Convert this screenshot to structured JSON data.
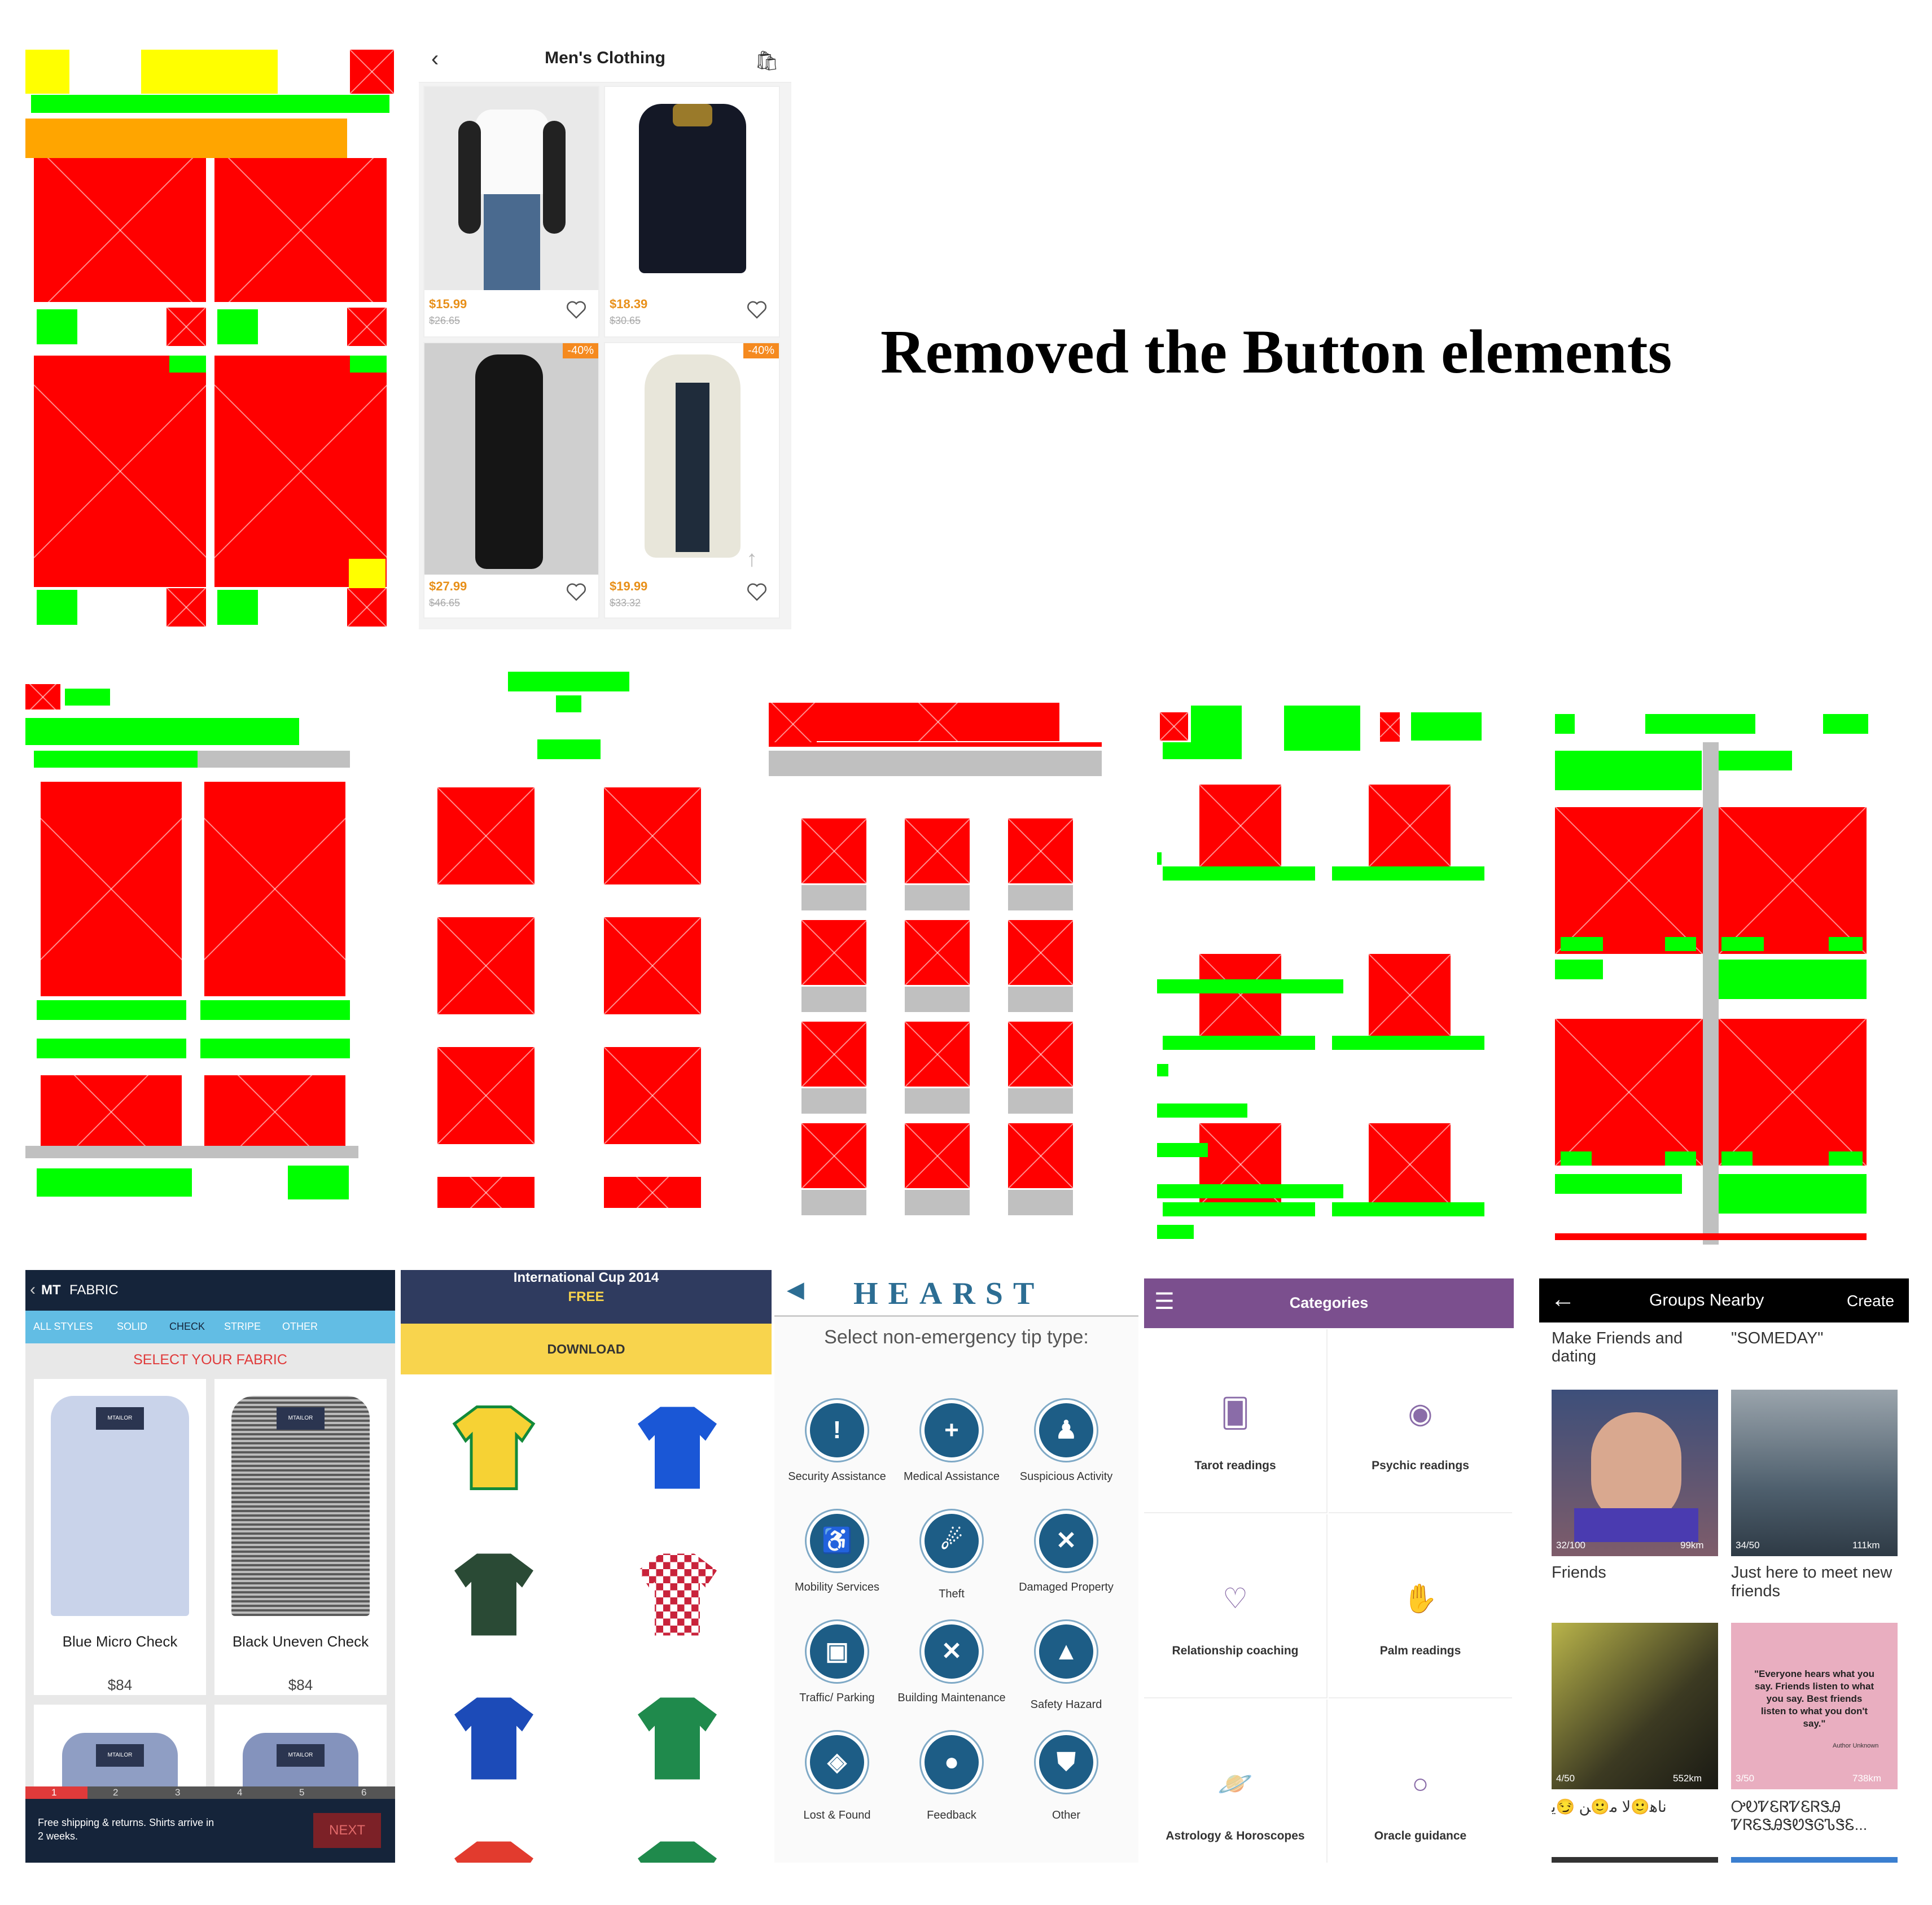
{
  "heading": "Removed the Button elements",
  "mens": {
    "title": "Men's Clothing",
    "items": [
      {
        "price": "$15.99",
        "old": "$26.65",
        "discount": ""
      },
      {
        "price": "$18.39",
        "old": "$30.65",
        "discount": ""
      },
      {
        "price": "$27.99",
        "old": "$46.65",
        "discount": "-40%"
      },
      {
        "price": "$19.99",
        "old": "$33.32",
        "discount": "-40%"
      }
    ]
  },
  "fabric": {
    "logo": "MT",
    "title": "FABRIC",
    "tabs": [
      "ALL STYLES",
      "SOLID",
      "CHECK",
      "STRIPE",
      "OTHER"
    ],
    "select": "SELECT YOUR FABRIC",
    "products": [
      {
        "name": "Blue Micro Check",
        "price": "$84"
      },
      {
        "name": "Black Uneven Check",
        "price": "$84"
      }
    ],
    "steps": [
      "1",
      "2",
      "3",
      "4",
      "5",
      "6"
    ],
    "shipping": "Free shipping & returns. Shirts arrive in 2 weeks.",
    "next": "NEXT",
    "shirt_tag": "MTAILOR"
  },
  "cup": {
    "title": "International Cup 2014",
    "price": "FREE",
    "download": "DOWNLOAD"
  },
  "hearst": {
    "brand": "HEARST",
    "prompt": "Select non-emergency tip type:",
    "items": [
      {
        "label": "Security Assistance",
        "icon": "shield-icon"
      },
      {
        "label": "Medical Assistance",
        "icon": "plus-icon"
      },
      {
        "label": "Suspicious Activity",
        "icon": "person-icon"
      },
      {
        "label": "Mobility Services",
        "icon": "wheelchair-icon"
      },
      {
        "label": "Theft",
        "icon": "runner-icon"
      },
      {
        "label": "Damaged Property",
        "icon": "tools-icon"
      },
      {
        "label": "Traffic/ Parking",
        "icon": "car-icon"
      },
      {
        "label": "Building Maintenance",
        "icon": "wrench-icon"
      },
      {
        "label": "Safety Hazard",
        "icon": "warning-icon"
      },
      {
        "label": "Lost & Found",
        "icon": "box-icon"
      },
      {
        "label": "Feedback",
        "icon": "bulb-icon"
      },
      {
        "label": "Other",
        "icon": "shield-icon"
      }
    ]
  },
  "categories": {
    "title": "Categories",
    "items": [
      {
        "label": "Tarot readings",
        "icon": "cards-icon"
      },
      {
        "label": "Psychic readings",
        "icon": "eye-icon"
      },
      {
        "label": "Relationship coaching",
        "icon": "heart-icon"
      },
      {
        "label": "Palm readings",
        "icon": "hand-icon"
      },
      {
        "label": "Astrology & Horoscopes",
        "icon": "planet-icon"
      },
      {
        "label": "Oracle guidance",
        "icon": "crystal-ball-icon"
      }
    ]
  },
  "groups": {
    "title": "Groups Nearby",
    "create": "Create",
    "top_labels": [
      "Make Friends and dating",
      "\"SOMEDAY\""
    ],
    "cards": [
      {
        "count": "32/100",
        "distance": "99km",
        "name": "Friends"
      },
      {
        "count": "34/50",
        "distance": "111km",
        "name": "Just here to meet new friends"
      },
      {
        "count": "4/50",
        "distance": "552km",
        "name": "ناﻫ🙂ﻻ ﻣ🙂ﻦ 😏ﻳ"
      },
      {
        "count": "3/50",
        "distance": "738km",
        "name": "ᎤᎧᏤᏋᏒᏤᏋᏒᏕᎯ ᏤᏒᏋᏕᎯᏕᏬᏕᎶᏖᏕᏋ..."
      }
    ],
    "quote": "\"Everyone hears what you say. Friends listen to what you say. Best friends listen to what you don't say.\"",
    "quote_author": "Author Unknown"
  }
}
